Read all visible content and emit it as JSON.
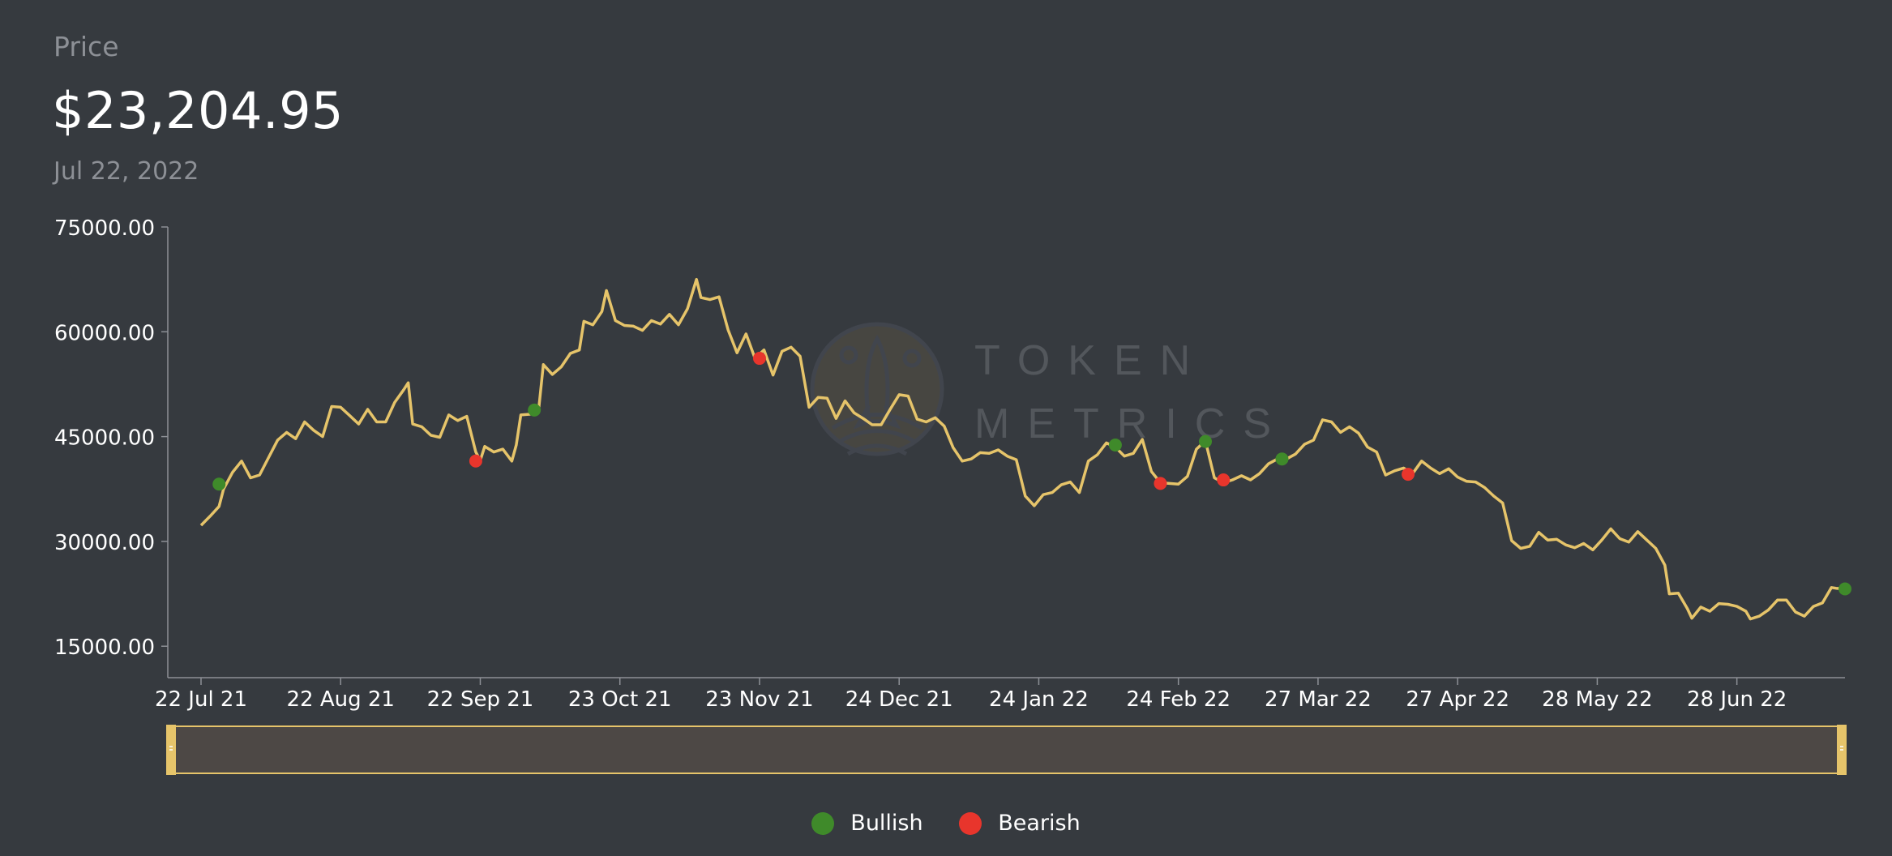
{
  "header": {
    "label": "Price",
    "price": "$23,204.95",
    "date": "Jul 22, 2022"
  },
  "watermark": {
    "line1": "TOKEN",
    "line2": "METRICS"
  },
  "colors": {
    "background": "#363a3f",
    "line": "#e6c46a",
    "bullish": "#3f8a2a",
    "bearish": "#e8352c",
    "axis": "#8d9096",
    "navigator_fill": "#4d4845",
    "navigator_border": "#e6c46a"
  },
  "chart_data": {
    "type": "line",
    "title": "",
    "xlabel": "",
    "ylabel": "",
    "ylim": [
      10500,
      75000
    ],
    "x_range": [
      "2021-07-22",
      "2022-07-22"
    ],
    "y_ticks": [
      "75000.00",
      "60000.00",
      "45000.00",
      "30000.00",
      "15000.00"
    ],
    "x_ticks": [
      {
        "date": "2021-07-22",
        "label": "22 Jul 21"
      },
      {
        "date": "2021-08-22",
        "label": "22 Aug 21"
      },
      {
        "date": "2021-09-22",
        "label": "22 Sep 21"
      },
      {
        "date": "2021-10-23",
        "label": "23 Oct 21"
      },
      {
        "date": "2021-11-23",
        "label": "23 Nov 21"
      },
      {
        "date": "2021-12-24",
        "label": "24 Dec 21"
      },
      {
        "date": "2022-01-24",
        "label": "24 Jan 22"
      },
      {
        "date": "2022-02-24",
        "label": "24 Feb 22"
      },
      {
        "date": "2022-03-27",
        "label": "27 Mar 22"
      },
      {
        "date": "2022-04-27",
        "label": "27 Apr 22"
      },
      {
        "date": "2022-05-28",
        "label": "28 May 22"
      },
      {
        "date": "2022-06-28",
        "label": "28 Jun 22"
      }
    ],
    "series": [
      {
        "values": [
          [
            "2021-07-22",
            32300
          ],
          [
            "2021-07-24",
            33600
          ],
          [
            "2021-07-26",
            35000
          ],
          [
            "2021-07-27",
            37500
          ],
          [
            "2021-07-29",
            39900
          ],
          [
            "2021-07-31",
            41500
          ],
          [
            "2021-08-02",
            39100
          ],
          [
            "2021-08-04",
            39500
          ],
          [
            "2021-08-06",
            42000
          ],
          [
            "2021-08-08",
            44500
          ],
          [
            "2021-08-10",
            45600
          ],
          [
            "2021-08-12",
            44700
          ],
          [
            "2021-08-14",
            47100
          ],
          [
            "2021-08-16",
            45900
          ],
          [
            "2021-08-18",
            45000
          ],
          [
            "2021-08-20",
            49300
          ],
          [
            "2021-08-22",
            49200
          ],
          [
            "2021-08-24",
            48000
          ],
          [
            "2021-08-26",
            46800
          ],
          [
            "2021-08-28",
            48900
          ],
          [
            "2021-08-30",
            47100
          ],
          [
            "2021-09-01",
            47100
          ],
          [
            "2021-09-03",
            49900
          ],
          [
            "2021-09-05",
            51700
          ],
          [
            "2021-09-06",
            52700
          ],
          [
            "2021-09-07",
            46800
          ],
          [
            "2021-09-09",
            46400
          ],
          [
            "2021-09-11",
            45200
          ],
          [
            "2021-09-13",
            44900
          ],
          [
            "2021-09-15",
            48100
          ],
          [
            "2021-09-17",
            47300
          ],
          [
            "2021-09-19",
            47900
          ],
          [
            "2021-09-21",
            42800
          ],
          [
            "2021-09-22",
            41600
          ],
          [
            "2021-09-23",
            43600
          ],
          [
            "2021-09-25",
            42800
          ],
          [
            "2021-09-27",
            43200
          ],
          [
            "2021-09-29",
            41500
          ],
          [
            "2021-09-30",
            43800
          ],
          [
            "2021-10-01",
            48100
          ],
          [
            "2021-10-03",
            48200
          ],
          [
            "2021-10-05",
            49100
          ],
          [
            "2021-10-06",
            55300
          ],
          [
            "2021-10-08",
            53900
          ],
          [
            "2021-10-10",
            55000
          ],
          [
            "2021-10-12",
            56900
          ],
          [
            "2021-10-14",
            57400
          ],
          [
            "2021-10-15",
            61500
          ],
          [
            "2021-10-17",
            61000
          ],
          [
            "2021-10-19",
            62900
          ],
          [
            "2021-10-20",
            65900
          ],
          [
            "2021-10-22",
            61600
          ],
          [
            "2021-10-24",
            60900
          ],
          [
            "2021-10-26",
            60800
          ],
          [
            "2021-10-28",
            60200
          ],
          [
            "2021-10-30",
            61600
          ],
          [
            "2021-11-01",
            61100
          ],
          [
            "2021-11-03",
            62500
          ],
          [
            "2021-11-05",
            61000
          ],
          [
            "2021-11-07",
            63300
          ],
          [
            "2021-11-09",
            67500
          ],
          [
            "2021-11-10",
            64900
          ],
          [
            "2021-11-12",
            64600
          ],
          [
            "2021-11-14",
            65000
          ],
          [
            "2021-11-16",
            60300
          ],
          [
            "2021-11-18",
            57000
          ],
          [
            "2021-11-20",
            59700
          ],
          [
            "2021-11-22",
            56200
          ],
          [
            "2021-11-24",
            57400
          ],
          [
            "2021-11-26",
            53800
          ],
          [
            "2021-11-28",
            57200
          ],
          [
            "2021-11-30",
            57800
          ],
          [
            "2021-12-02",
            56500
          ],
          [
            "2021-12-04",
            49200
          ],
          [
            "2021-12-06",
            50600
          ],
          [
            "2021-12-08",
            50500
          ],
          [
            "2021-12-10",
            47600
          ],
          [
            "2021-12-12",
            50100
          ],
          [
            "2021-12-14",
            48400
          ],
          [
            "2021-12-16",
            47600
          ],
          [
            "2021-12-18",
            46700
          ],
          [
            "2021-12-20",
            46700
          ],
          [
            "2021-12-22",
            48900
          ],
          [
            "2021-12-24",
            51000
          ],
          [
            "2021-12-26",
            50800
          ],
          [
            "2021-12-28",
            47500
          ],
          [
            "2021-12-30",
            47100
          ],
          [
            "2022-01-01",
            47700
          ],
          [
            "2022-01-03",
            46500
          ],
          [
            "2022-01-05",
            43400
          ],
          [
            "2022-01-07",
            41500
          ],
          [
            "2022-01-09",
            41800
          ],
          [
            "2022-01-11",
            42700
          ],
          [
            "2022-01-13",
            42600
          ],
          [
            "2022-01-15",
            43100
          ],
          [
            "2022-01-17",
            42200
          ],
          [
            "2022-01-19",
            41700
          ],
          [
            "2022-01-21",
            36500
          ],
          [
            "2022-01-23",
            35100
          ],
          [
            "2022-01-25",
            36700
          ],
          [
            "2022-01-27",
            37000
          ],
          [
            "2022-01-29",
            38100
          ],
          [
            "2022-01-31",
            38500
          ],
          [
            "2022-02-02",
            37000
          ],
          [
            "2022-02-04",
            41500
          ],
          [
            "2022-02-06",
            42400
          ],
          [
            "2022-02-08",
            44100
          ],
          [
            "2022-02-10",
            43500
          ],
          [
            "2022-02-12",
            42200
          ],
          [
            "2022-02-14",
            42600
          ],
          [
            "2022-02-16",
            44600
          ],
          [
            "2022-02-18",
            40000
          ],
          [
            "2022-02-20",
            38400
          ],
          [
            "2022-02-22",
            38300
          ],
          [
            "2022-02-24",
            38200
          ],
          [
            "2022-02-26",
            39300
          ],
          [
            "2022-02-28",
            43200
          ],
          [
            "2022-03-02",
            44400
          ],
          [
            "2022-03-04",
            39100
          ],
          [
            "2022-03-06",
            38400
          ],
          [
            "2022-03-08",
            38800
          ],
          [
            "2022-03-10",
            39400
          ],
          [
            "2022-03-12",
            38800
          ],
          [
            "2022-03-14",
            39700
          ],
          [
            "2022-03-16",
            41100
          ],
          [
            "2022-03-18",
            41800
          ],
          [
            "2022-03-20",
            41800
          ],
          [
            "2022-03-22",
            42500
          ],
          [
            "2022-03-24",
            43900
          ],
          [
            "2022-03-26",
            44500
          ],
          [
            "2022-03-28",
            47400
          ],
          [
            "2022-03-30",
            47100
          ],
          [
            "2022-04-01",
            45600
          ],
          [
            "2022-04-03",
            46400
          ],
          [
            "2022-04-05",
            45500
          ],
          [
            "2022-04-07",
            43500
          ],
          [
            "2022-04-09",
            42800
          ],
          [
            "2022-04-11",
            39500
          ],
          [
            "2022-04-13",
            40100
          ],
          [
            "2022-04-15",
            40500
          ],
          [
            "2022-04-17",
            39700
          ],
          [
            "2022-04-19",
            41500
          ],
          [
            "2022-04-21",
            40500
          ],
          [
            "2022-04-23",
            39700
          ],
          [
            "2022-04-25",
            40400
          ],
          [
            "2022-04-27",
            39200
          ],
          [
            "2022-04-29",
            38600
          ],
          [
            "2022-05-01",
            38500
          ],
          [
            "2022-05-03",
            37700
          ],
          [
            "2022-05-05",
            36500
          ],
          [
            "2022-05-07",
            35500
          ],
          [
            "2022-05-09",
            30100
          ],
          [
            "2022-05-11",
            29000
          ],
          [
            "2022-05-13",
            29300
          ],
          [
            "2022-05-15",
            31300
          ],
          [
            "2022-05-17",
            30200
          ],
          [
            "2022-05-19",
            30300
          ],
          [
            "2022-05-21",
            29500
          ],
          [
            "2022-05-23",
            29100
          ],
          [
            "2022-05-25",
            29700
          ],
          [
            "2022-05-27",
            28800
          ],
          [
            "2022-05-29",
            30200
          ],
          [
            "2022-05-31",
            31800
          ],
          [
            "2022-06-02",
            30400
          ],
          [
            "2022-06-04",
            29900
          ],
          [
            "2022-06-06",
            31400
          ],
          [
            "2022-06-08",
            30200
          ],
          [
            "2022-06-10",
            29000
          ],
          [
            "2022-06-12",
            26600
          ],
          [
            "2022-06-13",
            22500
          ],
          [
            "2022-06-15",
            22600
          ],
          [
            "2022-06-17",
            20400
          ],
          [
            "2022-06-18",
            19000
          ],
          [
            "2022-06-20",
            20600
          ],
          [
            "2022-06-22",
            20000
          ],
          [
            "2022-06-24",
            21100
          ],
          [
            "2022-06-26",
            21000
          ],
          [
            "2022-06-28",
            20700
          ],
          [
            "2022-06-30",
            20000
          ],
          [
            "2022-07-01",
            18900
          ],
          [
            "2022-07-03",
            19300
          ],
          [
            "2022-07-05",
            20200
          ],
          [
            "2022-07-07",
            21600
          ],
          [
            "2022-07-09",
            21600
          ],
          [
            "2022-07-11",
            19900
          ],
          [
            "2022-07-13",
            19300
          ],
          [
            "2022-07-15",
            20700
          ],
          [
            "2022-07-17",
            21200
          ],
          [
            "2022-07-19",
            23400
          ],
          [
            "2022-07-20",
            23300
          ],
          [
            "2022-07-22",
            23200
          ]
        ]
      }
    ],
    "markers": [
      {
        "type": "Bullish",
        "date": "2021-07-26",
        "value": 38200
      },
      {
        "type": "Bearish",
        "date": "2021-09-21",
        "value": 41500
      },
      {
        "type": "Bullish",
        "date": "2021-10-04",
        "value": 48800
      },
      {
        "type": "Bearish",
        "date": "2021-11-23",
        "value": 56200
      },
      {
        "type": "Bullish",
        "date": "2022-02-10",
        "value": 43800
      },
      {
        "type": "Bearish",
        "date": "2022-02-20",
        "value": 38300
      },
      {
        "type": "Bullish",
        "date": "2022-03-02",
        "value": 44300
      },
      {
        "type": "Bearish",
        "date": "2022-03-06",
        "value": 38800
      },
      {
        "type": "Bullish",
        "date": "2022-03-19",
        "value": 41800
      },
      {
        "type": "Bearish",
        "date": "2022-04-16",
        "value": 39600
      },
      {
        "type": "Bullish",
        "date": "2022-07-22",
        "value": 23200
      }
    ],
    "legend": [
      {
        "label": "Bullish",
        "color": "#3f8a2a"
      },
      {
        "label": "Bearish",
        "color": "#e8352c"
      }
    ]
  }
}
